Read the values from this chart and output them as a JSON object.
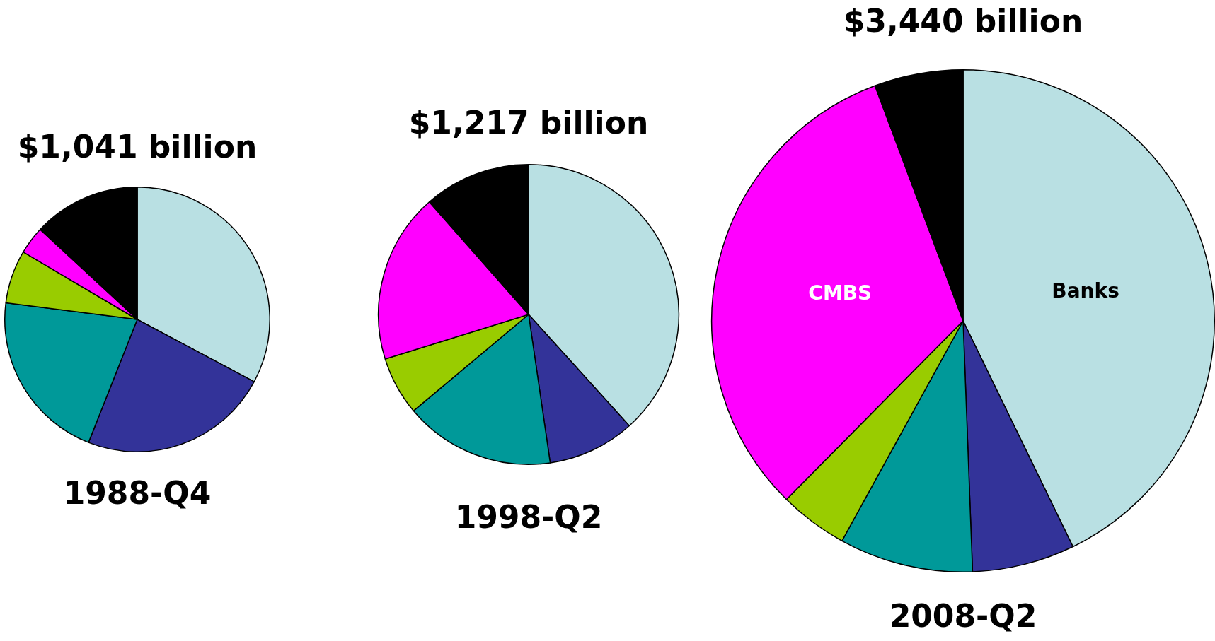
{
  "chart_data": [
    {
      "type": "pie",
      "title": "$1,041 billion",
      "xlabel": "1988-Q4",
      "categories": [
        null,
        null,
        null,
        null,
        null,
        null
      ],
      "values": [
        32.8,
        23.2,
        21,
        6.5,
        3.4,
        13.1
      ],
      "colors": [
        "#b9e0e3",
        "#333399",
        "#009999",
        "#99cc00",
        "#ff00ff",
        "#000000"
      ]
    },
    {
      "type": "pie",
      "title": "$1,217 billion",
      "xlabel": "1998-Q2",
      "categories": [
        null,
        null,
        null,
        null,
        null,
        null
      ],
      "values": [
        38.3,
        9.4,
        16.2,
        6.3,
        18.3,
        11.5
      ],
      "colors": [
        "#b9e0e3",
        "#333399",
        "#009999",
        "#99cc00",
        "#ff00ff",
        "#000000"
      ]
    },
    {
      "type": "pie",
      "title": "$3,440 billion",
      "xlabel": "2008-Q2",
      "categories": [
        "Banks",
        null,
        null,
        null,
        "CMBS",
        null
      ],
      "values": [
        42.8,
        6.6,
        8.6,
        4.4,
        31.9,
        5.7
      ],
      "colors": [
        "#b9e0e3",
        "#333399",
        "#009999",
        "#99cc00",
        "#ff00ff",
        "#000000"
      ]
    }
  ]
}
